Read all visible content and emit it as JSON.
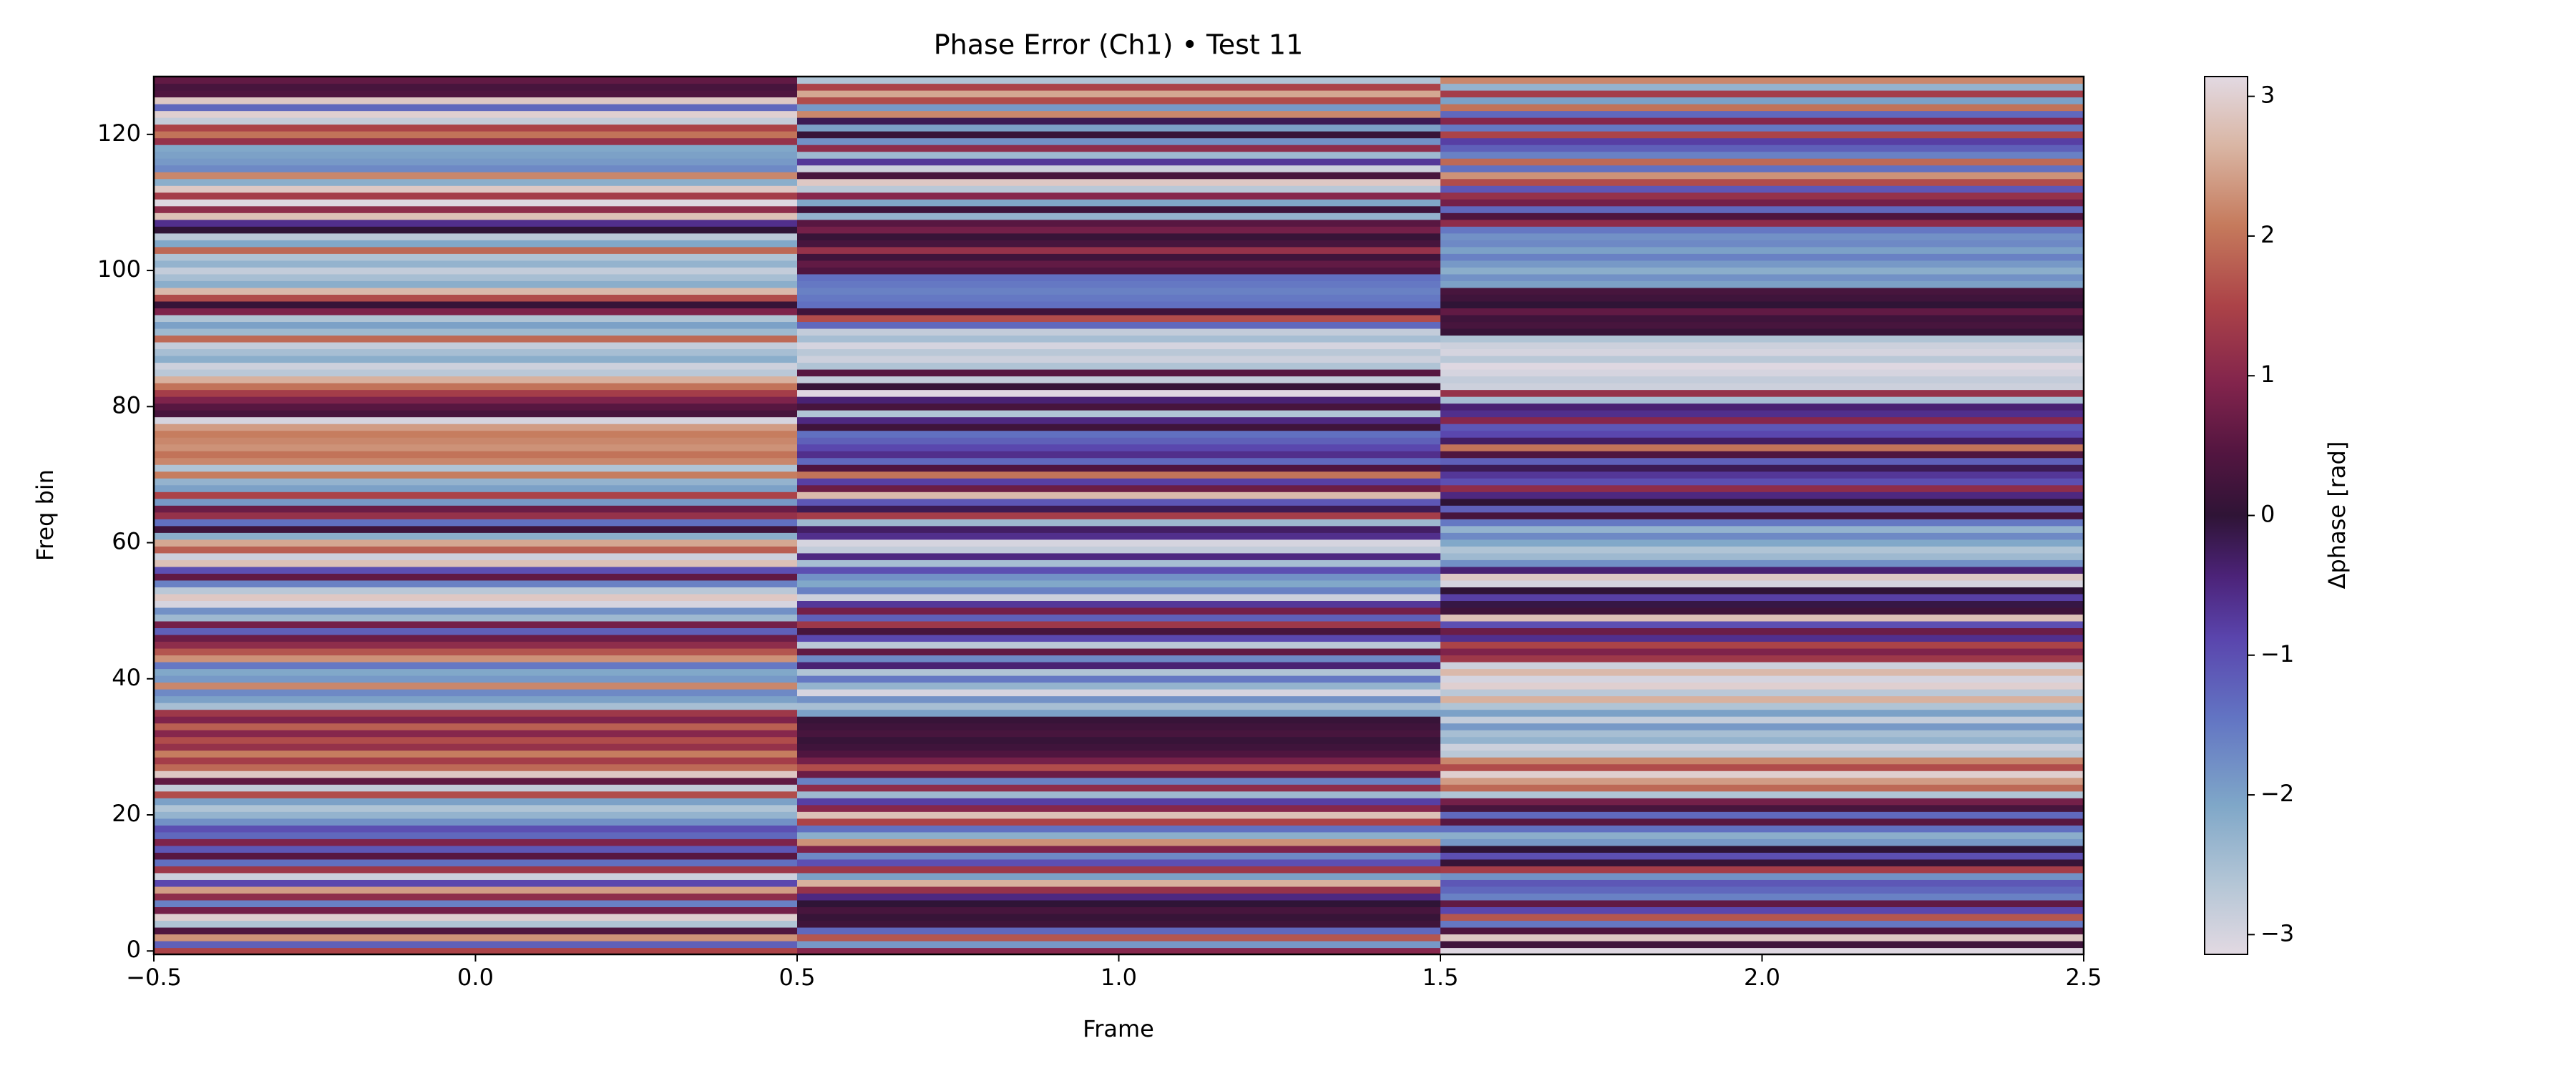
{
  "chart_data": {
    "type": "heatmap",
    "title": "Phase Error (Ch1) • Test 11",
    "xlabel": "Frame",
    "ylabel": "Freq bin",
    "colorbar_label": "Δphase [rad]",
    "colormap": "twilight_shifted",
    "x": [
      0,
      1,
      2
    ],
    "y": [
      0,
      1,
      2,
      3,
      4,
      5,
      6,
      7,
      8,
      9,
      10,
      11,
      12,
      13,
      14,
      15,
      16,
      17,
      18,
      19,
      20,
      21,
      22,
      23,
      24,
      25,
      26,
      27,
      28,
      29,
      30,
      31,
      32,
      33,
      34,
      35,
      36,
      37,
      38,
      39,
      40,
      41,
      42,
      43,
      44,
      45,
      46,
      47,
      48,
      49,
      50,
      51,
      52,
      53,
      54,
      55,
      56,
      57,
      58,
      59,
      60,
      61,
      62,
      63,
      64,
      65,
      66,
      67,
      68,
      69,
      70,
      71,
      72,
      73,
      74,
      75,
      76,
      77,
      78,
      79,
      80,
      81,
      82,
      83,
      84,
      85,
      86,
      87,
      88,
      89,
      90,
      91,
      92,
      93,
      94,
      95,
      96,
      97,
      98,
      99,
      100,
      101,
      102,
      103,
      104,
      105,
      106,
      107,
      108,
      109,
      110,
      111,
      112,
      113,
      114,
      115,
      116,
      117,
      118,
      119,
      120,
      121,
      122,
      123,
      124,
      125,
      126,
      127,
      128
    ],
    "values": [
      [
        1.5,
        -1.2,
        2.3,
        0.4,
        -2.6,
        3.0,
        0.8,
        -1.6,
        1.1,
        2.4,
        -0.9,
        -2.9,
        1.3,
        -1.4,
        0.5,
        -1.1,
        0.9,
        -1.3,
        -1.0,
        -1.8,
        -2.3,
        -2.6,
        -2.0,
        1.6,
        -2.8,
        0.6,
        2.9,
        1.9,
        1.4,
        2.1,
        1.2,
        1.6,
        1.0,
        1.8,
        0.9,
        1.3,
        -2.5,
        -2.0,
        -1.7,
        2.2,
        -1.9,
        -2.1,
        -1.5,
        2.3,
        1.7,
        1.1,
        0.7,
        -1.2,
        0.8,
        -2.4,
        -1.8,
        -3.0,
        2.9,
        -2.7,
        -1.6,
        0.6,
        -1.0,
        2.8,
        -2.9,
        1.8,
        2.5,
        -2.2,
        0.2,
        -1.4,
        1.2,
        0.7,
        -1.9,
        1.5,
        -2.0,
        -2.3,
        2.1,
        -2.6,
        2.2,
        2.0,
        2.3,
        2.2,
        2.1,
        2.4,
        -3.0,
        0.3,
        0.5,
        0.9,
        1.4,
        2.0,
        2.6,
        -2.7,
        -2.9,
        -2.2,
        -2.5,
        -2.8,
        1.9,
        -2.4,
        -2.0,
        -2.6,
        0.9,
        0.1,
        1.6,
        2.7,
        -2.2,
        -2.5,
        -2.8,
        -2.3,
        -2.6,
        1.9,
        -2.1,
        -2.7,
        0.0,
        -0.6,
        2.8,
        1.1,
        -3.1,
        1.4,
        2.9,
        -2.2,
        2.2,
        -1.7,
        -1.9,
        -2.0,
        -2.1,
        1.2,
        2.0,
        1.5,
        -2.8,
        3.0,
        -1.3,
        2.9,
        0.4,
        0.3,
        0.6
      ],
      [
        1.0,
        -1.9,
        1.7,
        -1.3,
        0.2,
        0.1,
        0.3,
        0.0,
        -0.5,
        1.2,
        2.6,
        -2.0,
        1.3,
        -1.0,
        -1.7,
        0.9,
        2.3,
        -2.2,
        -1.4,
        1.5,
        2.8,
        1.0,
        -0.8,
        -2.4,
        1.1,
        -1.6,
        0.7,
        1.6,
        0.8,
        0.4,
        0.2,
        0.1,
        0.3,
        0.2,
        0.1,
        -2.0,
        -2.5,
        -1.8,
        -3.0,
        -2.3,
        -1.5,
        -2.6,
        -0.4,
        -1.7,
        0.6,
        -2.7,
        -0.9,
        0.3,
        1.3,
        -1.2,
        0.8,
        -0.7,
        -2.9,
        -1.6,
        -2.1,
        -1.8,
        -1.0,
        -2.5,
        -0.5,
        -2.8,
        -3.0,
        -0.6,
        -0.3,
        -2.4,
        1.4,
        -0.2,
        -1.1,
        2.7,
        0.7,
        -0.8,
        2.0,
        0.4,
        -1.3,
        -0.6,
        -0.9,
        -1.2,
        -1.4,
        0.2,
        -0.5,
        -2.6,
        0.3,
        -0.4,
        -3.1,
        0.1,
        -2.8,
        0.5,
        -2.6,
        -2.9,
        -2.7,
        -3.0,
        -2.5,
        -2.8,
        -1.3,
        1.6,
        0.2,
        -1.4,
        -1.5,
        -1.6,
        -1.5,
        -1.4,
        0.4,
        0.6,
        0.2,
        1.2,
        0.3,
        0.1,
        0.8,
        0.5,
        -2.3,
        0.2,
        -2.1,
        1.0,
        -2.7,
        2.9,
        0.3,
        -2.9,
        -0.7,
        -2.4,
        1.1,
        -1.8,
        0.1,
        -2.0,
        -0.2,
        2.2,
        -1.9,
        1.6,
        2.5,
        1.5,
        -2.6
      ],
      [
        -3.1,
        0.2,
        2.9,
        0.4,
        -1.5,
        1.7,
        -0.9,
        0.6,
        -1.6,
        -1.3,
        -1.1,
        -1.8,
        1.4,
        0.1,
        -1.0,
        0.0,
        -1.9,
        -2.2,
        -1.4,
        0.5,
        -1.3,
        0.3,
        0.8,
        -2.6,
        1.9,
        2.4,
        3.0,
        1.6,
        2.2,
        -2.7,
        -2.9,
        -2.3,
        -2.5,
        -1.9,
        -2.8,
        -2.0,
        -2.6,
        2.6,
        -2.7,
        3.0,
        -3.0,
        2.7,
        -2.9,
        1.3,
        0.9,
        1.5,
        -0.6,
        0.7,
        -1.0,
        2.8,
        0.2,
        -0.1,
        -0.8,
        0.0,
        -3.0,
        2.9,
        -0.4,
        -1.8,
        -2.4,
        -2.6,
        -2.1,
        -1.7,
        -2.3,
        -1.5,
        0.3,
        -1.2,
        0.0,
        -0.5,
        1.1,
        -1.0,
        -0.7,
        -0.2,
        -1.2,
        0.4,
        2.0,
        -0.3,
        -0.9,
        -1.1,
        1.0,
        -0.6,
        -0.4,
        -2.5,
        1.2,
        -2.9,
        -2.8,
        -3.0,
        -3.1,
        -2.7,
        -3.0,
        -2.9,
        -2.6,
        0.1,
        0.3,
        0.2,
        0.6,
        0.0,
        0.2,
        0.3,
        -2.0,
        -1.8,
        -2.2,
        -1.9,
        -1.6,
        -2.0,
        -1.7,
        -1.8,
        -1.5,
        1.1,
        0.4,
        -1.3,
        0.8,
        1.2,
        -1.1,
        1.6,
        2.3,
        -1.4,
        1.9,
        -1.6,
        -1.2,
        -0.8,
        1.5,
        -1.5,
        1.0,
        -1.3,
        2.0,
        -2.0,
        1.4,
        -2.3,
        2.2
      ]
    ],
    "xlim": [
      -0.5,
      2.5
    ],
    "xticks": [
      {
        "value": -0.5,
        "label": "−0.5"
      },
      {
        "value": 0,
        "label": "0.0"
      },
      0.5,
      {
        "value": 1,
        "label": "1.0"
      },
      1.5,
      {
        "value": 2,
        "label": "2.0"
      },
      2.5
    ],
    "ylim": [
      -0.5,
      128.5
    ],
    "yticks": [
      0,
      20,
      40,
      60,
      80,
      100,
      120
    ],
    "clim": [
      -3.1416,
      3.1416
    ],
    "cticks": [
      {
        "value": -3,
        "label": "−3"
      },
      {
        "value": -2,
        "label": "−2"
      },
      {
        "value": -1,
        "label": "−1"
      },
      0,
      1,
      2,
      3
    ]
  }
}
